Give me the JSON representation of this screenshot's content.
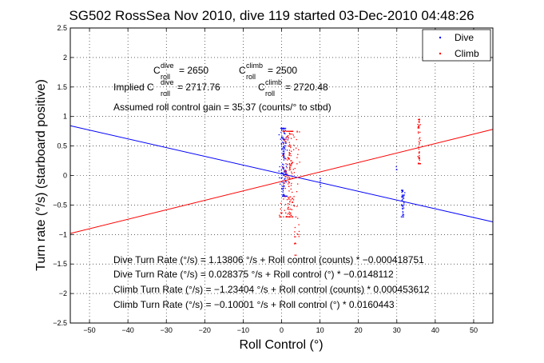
{
  "chart_data": {
    "type": "scatter",
    "title": "SG502 RossSea Nov 2010, dive 119 started 03-Dec-2010 04:48:26",
    "xlabel": "Roll Control (°)",
    "ylabel": "Turn rate (°/s) (starboard positive)",
    "xlim": [
      -55,
      55
    ],
    "ylim": [
      -2.5,
      2.5
    ],
    "xticks": [
      -50,
      -40,
      -30,
      -20,
      -10,
      0,
      10,
      20,
      30,
      40,
      50
    ],
    "yticks": [
      -2.5,
      -2,
      -1.5,
      -1,
      -0.5,
      0,
      0.5,
      1,
      1.5,
      2,
      2.5
    ],
    "xtick_labels": [
      "−50",
      "−40",
      "−30",
      "−20",
      "−10",
      "0",
      "10",
      "20",
      "30",
      "40",
      "50"
    ],
    "ytick_labels": [
      "−2.5",
      "−2",
      "−1.5",
      "−1",
      "−0.5",
      "0",
      "0.5",
      "1",
      "1.5",
      "2",
      "2.5"
    ],
    "grid": true,
    "legend_position": "top-right",
    "series": [
      {
        "name": "Dive",
        "color": "#0000ff",
        "clusters": [
          {
            "x_center": 0.5,
            "x_spread": 1.5,
            "y_min": -0.35,
            "y_max": 0.8,
            "count": 130
          },
          {
            "x_center": 31.5,
            "x_spread": 0.6,
            "y_min": -0.7,
            "y_max": -0.25,
            "count": 40
          },
          {
            "x_center": 10,
            "x_spread": 0.3,
            "y_min": -0.35,
            "y_max": -0.05,
            "count": 5
          },
          {
            "x_center": 30,
            "x_spread": 0.3,
            "y_min": 0.1,
            "y_max": 0.2,
            "count": 3
          }
        ],
        "fit": {
          "slope": -0.0148112,
          "intercept": 0.028375
        }
      },
      {
        "name": "Climb",
        "color": "#ff0000",
        "clusters": [
          {
            "x_center": 2.0,
            "x_spread": 3.0,
            "y_min": -0.7,
            "y_max": 0.75,
            "count": 200
          },
          {
            "x_center": 35.8,
            "x_spread": 0.5,
            "y_min": 0.2,
            "y_max": 0.95,
            "count": 50
          },
          {
            "x_center": 3.5,
            "x_spread": 0.4,
            "y_min": -1.35,
            "y_max": -0.8,
            "count": 10
          },
          {
            "x_center": 4.5,
            "x_spread": 1.0,
            "y_min": -1.05,
            "y_max": -0.7,
            "count": 6
          }
        ],
        "fit": {
          "slope": 0.0160443,
          "intercept": -0.10001
        }
      }
    ],
    "annotations": {
      "c_dive_base": "C",
      "c_dive_sup": "dive",
      "c_dive_sub": "roll",
      "c_dive_value": " = 2650",
      "c_climb_base": "C",
      "c_climb_sup": "climb",
      "c_climb_sub": "roll",
      "c_climb_value": " = 2500",
      "implied_prefix": "Implied C",
      "implied_dive_sup": "dive",
      "implied_dive_sub": "roll",
      "implied_dive_value": " = 2717.76",
      "implied_climb_base": "C",
      "implied_climb_sup": "climb",
      "implied_climb_sub": "roll",
      "implied_climb_value": " = 2720.48",
      "gain": "Assumed roll control gain = 35.37 (counts/° to stbd)",
      "fit_lines": [
        "Dive Turn Rate (°/s) = 1.13806 °/s + Roll control (counts) * −0.000418751",
        "Dive Turn Rate (°/s) = 0.028375 °/s + Roll control (°) * −0.0148112",
        "Climb Turn Rate (°/s) = −1.23404 °/s + Roll control (counts) * 0.000453612",
        "Climb Turn Rate (°/s) = −0.10001 °/s + Roll control (°) * 0.0160443"
      ]
    }
  }
}
